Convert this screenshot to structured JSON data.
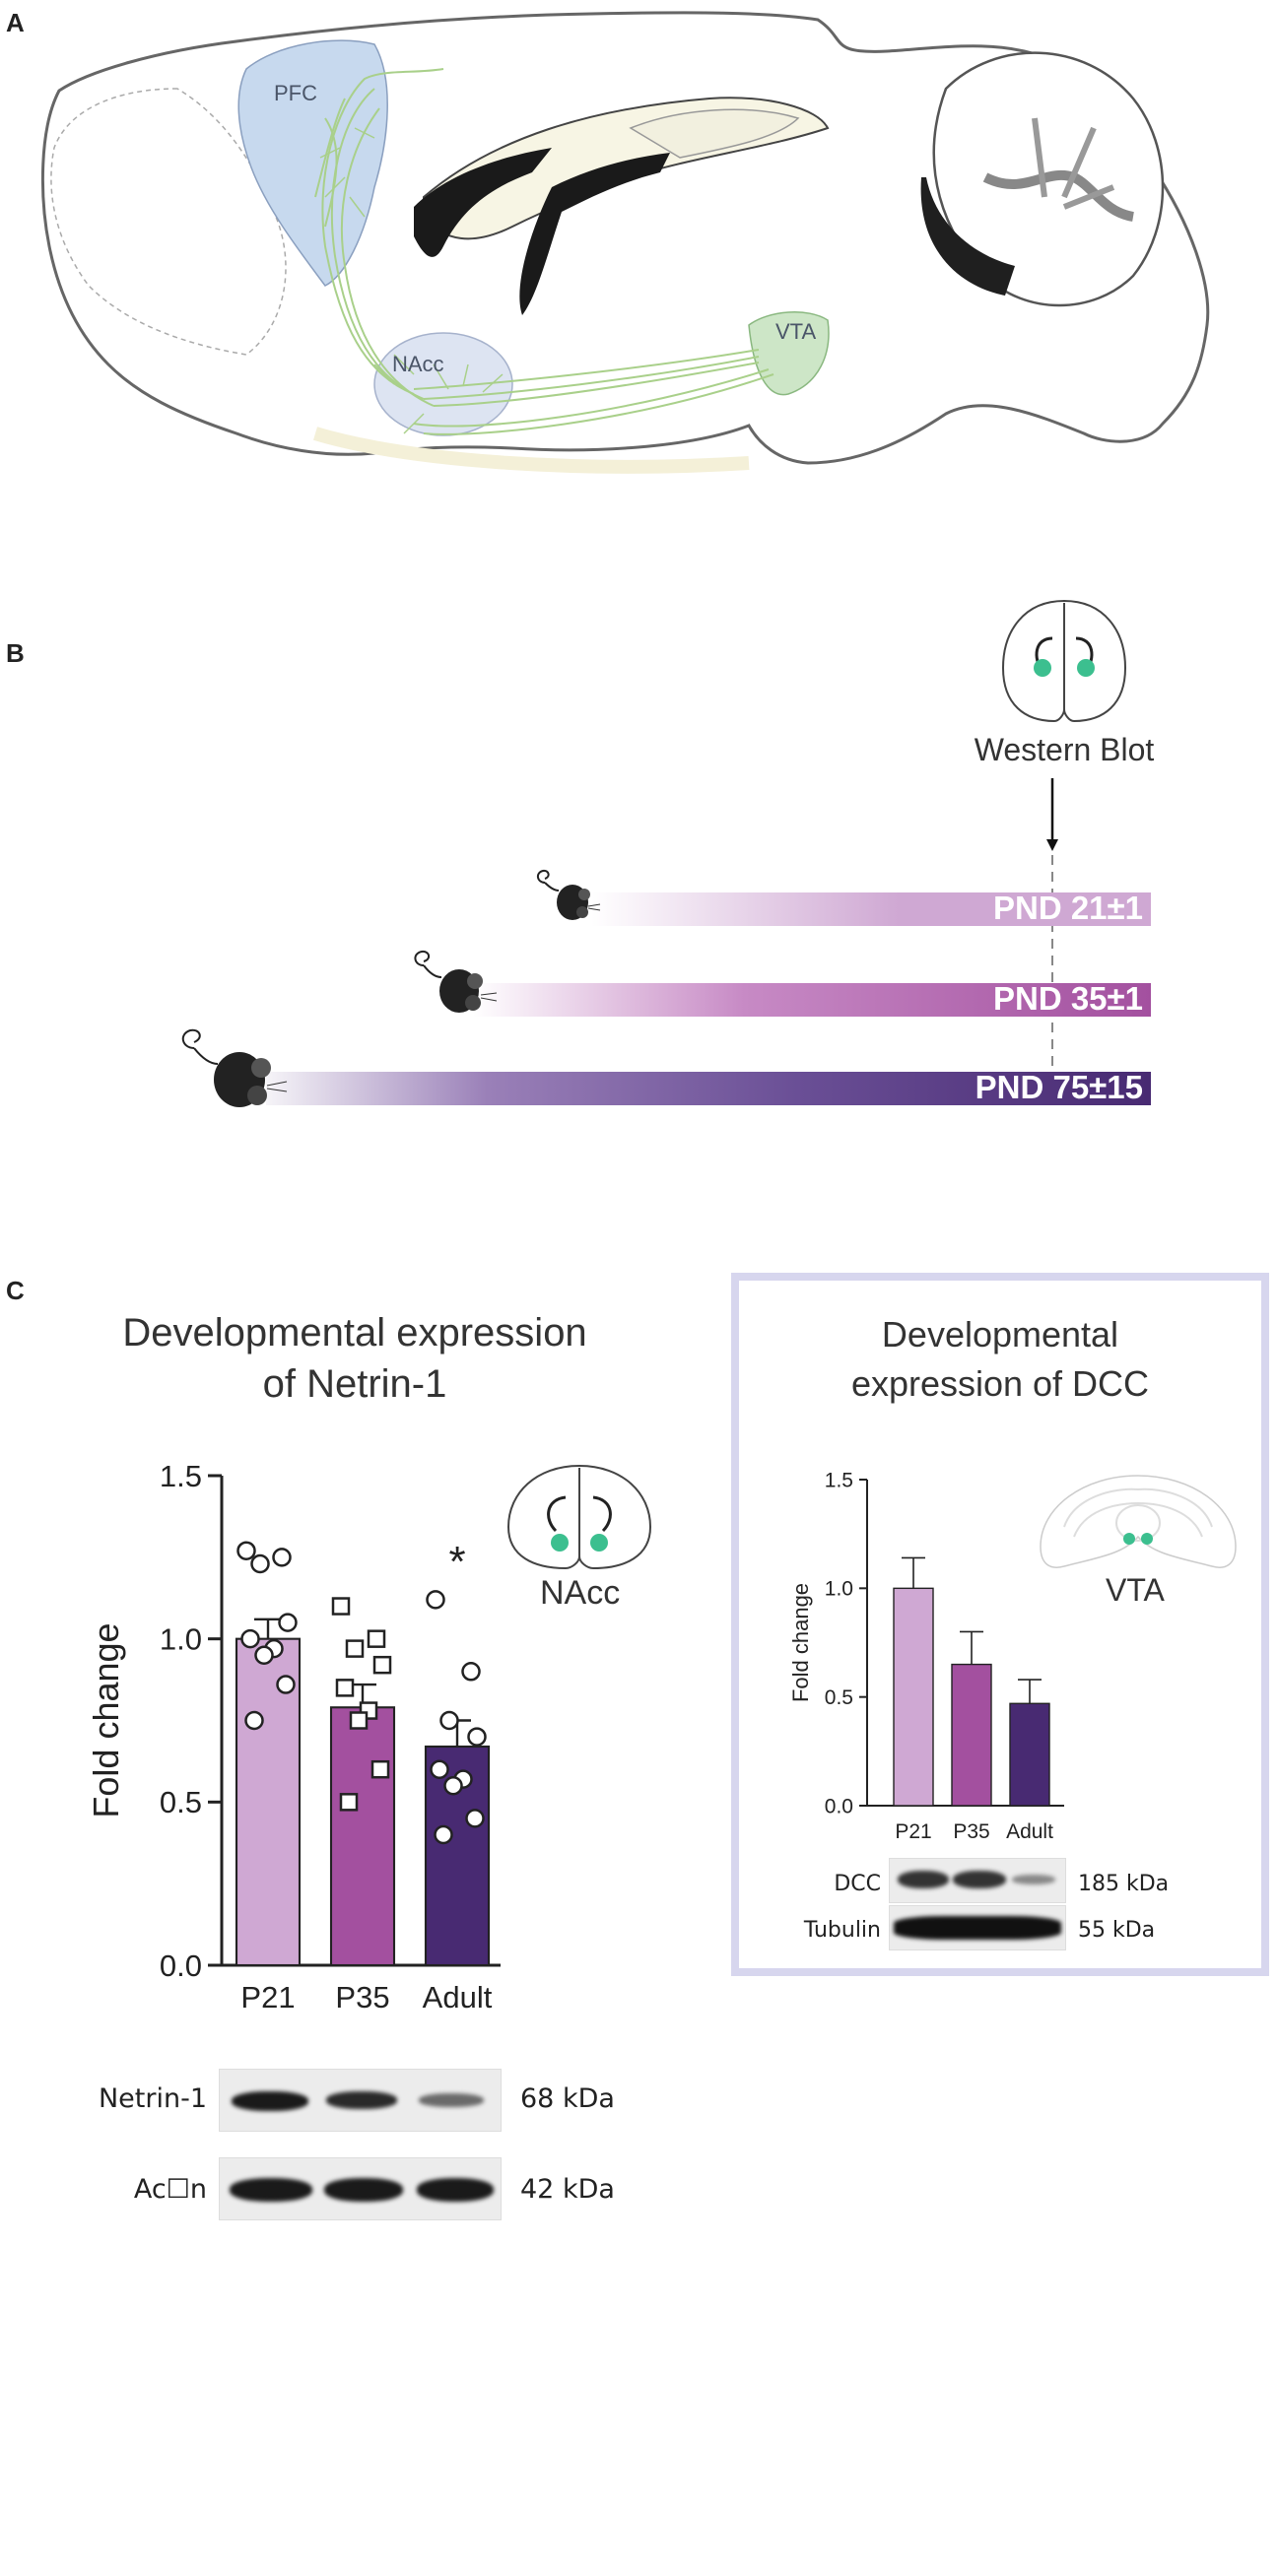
{
  "panels": {
    "a": "A",
    "b": "B",
    "c": "C"
  },
  "brain": {
    "pfc": "PFC",
    "nacc": "NAcc",
    "vta": "VTA"
  },
  "timeline": {
    "method": "Western Blot",
    "groups": [
      {
        "label": "PND 21±1"
      },
      {
        "label": "PND 35±1"
      },
      {
        "label": "PND 75±15"
      }
    ]
  },
  "netrin": {
    "title_line1": "Developmental expression",
    "title_line2": "of Netrin-1",
    "region": "NAcc",
    "significance": "*",
    "blot": [
      {
        "name": "Netrin-1",
        "size": "68 kDa"
      },
      {
        "name": "Ac☐n",
        "size": "42 kDa"
      }
    ]
  },
  "dcc": {
    "title_line1": "Developmental",
    "title_line2": "expression of DCC",
    "region": "VTA",
    "blot": [
      {
        "name": "DCC",
        "size": "185 kDa"
      },
      {
        "name": "Tubulin",
        "size": "55 kDa"
      }
    ]
  },
  "colors": {
    "p21": "#cfa8d3",
    "p35": "#a3509f",
    "adult": "#482a72",
    "dot": "#3cbf8f",
    "box": "#d7d6ee"
  },
  "chart_data": [
    {
      "type": "bar",
      "title": "Developmental expression of Netrin-1",
      "categories": [
        "P21",
        "P35",
        "Adult"
      ],
      "values": [
        1.0,
        0.79,
        0.67
      ],
      "errors": [
        0.06,
        0.07,
        0.08
      ],
      "points": [
        [
          1.27,
          1.25,
          1.23,
          1.05,
          1.0,
          0.97,
          0.95,
          0.86,
          0.75
        ],
        [
          1.1,
          1.0,
          0.97,
          0.92,
          0.85,
          0.78,
          0.75,
          0.6,
          0.5
        ],
        [
          1.12,
          0.9,
          0.75,
          0.7,
          0.6,
          0.57,
          0.55,
          0.45,
          0.4
        ]
      ],
      "marker_shapes": [
        "circle",
        "square",
        "circle"
      ],
      "xlabel": "",
      "ylabel": "Fold change",
      "ylim": [
        0,
        1.5
      ],
      "yticks": [
        "0.0",
        "0.5",
        "1.0",
        "1.5"
      ]
    },
    {
      "type": "bar",
      "title": "Developmental expression of DCC",
      "categories": [
        "P21",
        "P35",
        "Adult"
      ],
      "values": [
        1.0,
        0.65,
        0.47
      ],
      "errors": [
        0.14,
        0.15,
        0.11
      ],
      "xlabel": "",
      "ylabel": "Fold change",
      "ylim": [
        0,
        1.5
      ],
      "yticks": [
        "0.0",
        "0.5",
        "1.0",
        "1.5"
      ]
    }
  ]
}
